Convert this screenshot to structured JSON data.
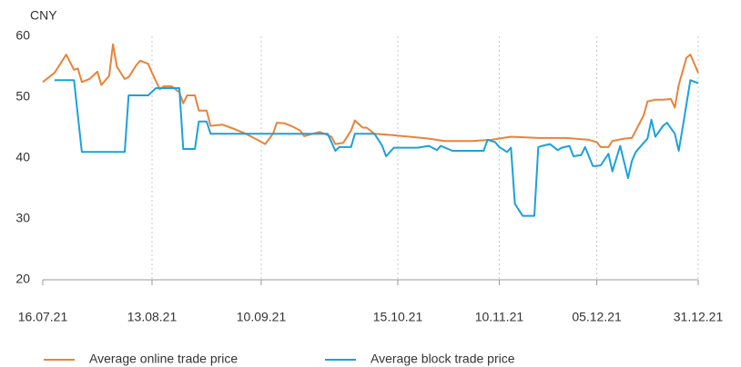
{
  "chart_data": {
    "type": "line",
    "y_label": "CNY",
    "ylim": [
      20,
      60
    ],
    "yticks": [
      20,
      30,
      40,
      50,
      60
    ],
    "xlim": [
      "2021-07-16",
      "2021-12-31"
    ],
    "xticks": [
      {
        "value": "2021-07-16",
        "label": "16.07.21"
      },
      {
        "value": "2021-08-13",
        "label": "13.08.21"
      },
      {
        "value": "2021-09-10",
        "label": "10.09.21"
      },
      {
        "value": "2021-10-15",
        "label": "15.10.21"
      },
      {
        "value": "2021-11-10",
        "label": "10.11.21"
      },
      {
        "value": "2021-12-05",
        "label": "05.12.21"
      },
      {
        "value": "2021-12-31",
        "label": "31.12.21"
      }
    ],
    "grid": true,
    "legend": "bottom",
    "series": [
      {
        "name": "Average online trade price",
        "color": "#e8833a",
        "x": [
          "2021-07-16",
          "2021-07-19",
          "2021-07-22",
          "2021-07-24",
          "2021-07-25",
          "2021-07-26",
          "2021-07-28",
          "2021-07-30",
          "2021-07-31",
          "2021-08-02",
          "2021-08-03",
          "2021-08-04",
          "2021-08-06",
          "2021-08-07",
          "2021-08-09",
          "2021-08-10",
          "2021-08-12",
          "2021-08-13",
          "2021-08-15",
          "2021-08-16",
          "2021-08-18",
          "2021-08-20",
          "2021-08-21",
          "2021-08-22",
          "2021-08-24",
          "2021-08-25",
          "2021-08-27",
          "2021-08-28",
          "2021-08-31",
          "2021-09-03",
          "2021-09-06",
          "2021-09-09",
          "2021-09-11",
          "2021-09-13",
          "2021-09-14",
          "2021-09-16",
          "2021-09-18",
          "2021-09-20",
          "2021-09-21",
          "2021-09-25",
          "2021-09-28",
          "2021-09-29",
          "2021-10-01",
          "2021-10-03",
          "2021-10-04",
          "2021-10-06",
          "2021-10-07",
          "2021-10-09",
          "2021-10-13",
          "2021-10-18",
          "2021-10-23",
          "2021-10-27",
          "2021-11-03",
          "2021-11-08",
          "2021-11-13",
          "2021-11-20",
          "2021-11-27",
          "2021-12-03",
          "2021-12-05",
          "2021-12-06",
          "2021-12-08",
          "2021-12-09",
          "2021-12-12",
          "2021-12-14",
          "2021-12-15",
          "2021-12-17",
          "2021-12-18",
          "2021-12-20",
          "2021-12-22",
          "2021-12-24",
          "2021-12-25",
          "2021-12-26",
          "2021-12-28",
          "2021-12-29",
          "2021-12-31"
        ],
        "values": [
          52.5,
          54,
          57,
          54.5,
          54.7,
          52.5,
          53,
          54.2,
          52,
          53.5,
          58.7,
          55,
          53,
          53.3,
          55.3,
          56,
          55.5,
          54,
          51.3,
          51.8,
          51.8,
          50.8,
          49,
          50.3,
          50.3,
          47.8,
          47.8,
          45.3,
          45.5,
          44.8,
          44,
          43,
          42.3,
          44,
          45.8,
          45.7,
          45.2,
          44.5,
          43.6,
          44.3,
          43.5,
          42.3,
          42.5,
          44.5,
          46.2,
          45,
          45,
          44,
          43.8,
          43.5,
          43.2,
          42.8,
          42.8,
          43,
          43.5,
          43.3,
          43.3,
          43,
          42.6,
          41.8,
          41.8,
          42.8,
          43.2,
          43.3,
          44.5,
          47,
          49.3,
          49.6,
          49.6,
          49.7,
          48.3,
          52,
          56.5,
          57,
          54
        ]
      },
      {
        "name": "Average block trade price",
        "color": "#1ba1dc",
        "x": [
          "2021-07-19",
          "2021-07-24",
          "2021-07-26",
          "2021-08-06",
          "2021-08-07",
          "2021-08-12",
          "2021-08-14",
          "2021-08-20",
          "2021-08-21",
          "2021-08-24",
          "2021-08-25",
          "2021-08-27",
          "2021-08-28",
          "2021-09-27",
          "2021-09-29",
          "2021-09-30",
          "2021-10-03",
          "2021-10-04",
          "2021-10-09",
          "2021-10-11",
          "2021-10-12",
          "2021-10-14",
          "2021-10-20",
          "2021-10-23",
          "2021-10-25",
          "2021-10-26",
          "2021-10-29",
          "2021-11-06",
          "2021-11-07",
          "2021-11-09",
          "2021-11-10",
          "2021-11-12",
          "2021-11-13",
          "2021-11-14",
          "2021-11-16",
          "2021-11-19",
          "2021-11-20",
          "2021-11-21",
          "2021-11-23",
          "2021-11-25",
          "2021-11-26",
          "2021-11-28",
          "2021-11-29",
          "2021-12-01",
          "2021-12-02",
          "2021-12-04",
          "2021-12-05",
          "2021-12-06",
          "2021-12-08",
          "2021-12-09",
          "2021-12-11",
          "2021-12-13",
          "2021-12-14",
          "2021-12-15",
          "2021-12-17",
          "2021-12-18",
          "2021-12-19",
          "2021-12-20",
          "2021-12-22",
          "2021-12-23",
          "2021-12-25",
          "2021-12-26",
          "2021-12-27",
          "2021-12-29",
          "2021-12-31"
        ],
        "values": [
          52.8,
          52.8,
          41,
          41,
          50.3,
          50.3,
          51.5,
          51.5,
          41.5,
          41.5,
          46,
          46,
          44,
          44,
          41.2,
          41.8,
          41.8,
          44,
          44,
          42,
          40.3,
          41.7,
          41.7,
          42,
          41.3,
          42,
          41.2,
          41.2,
          43,
          42.6,
          41.8,
          41,
          41.7,
          32.5,
          30.5,
          30.5,
          41.8,
          42,
          42.3,
          41.3,
          41.7,
          42,
          40.3,
          40.5,
          41.8,
          38.7,
          38.7,
          38.8,
          40.7,
          37.8,
          42,
          36.7,
          39.5,
          41,
          42.5,
          43.2,
          46.3,
          43.5,
          45.3,
          45.8,
          44,
          41.2,
          45,
          52.8,
          52.3
        ]
      }
    ]
  }
}
